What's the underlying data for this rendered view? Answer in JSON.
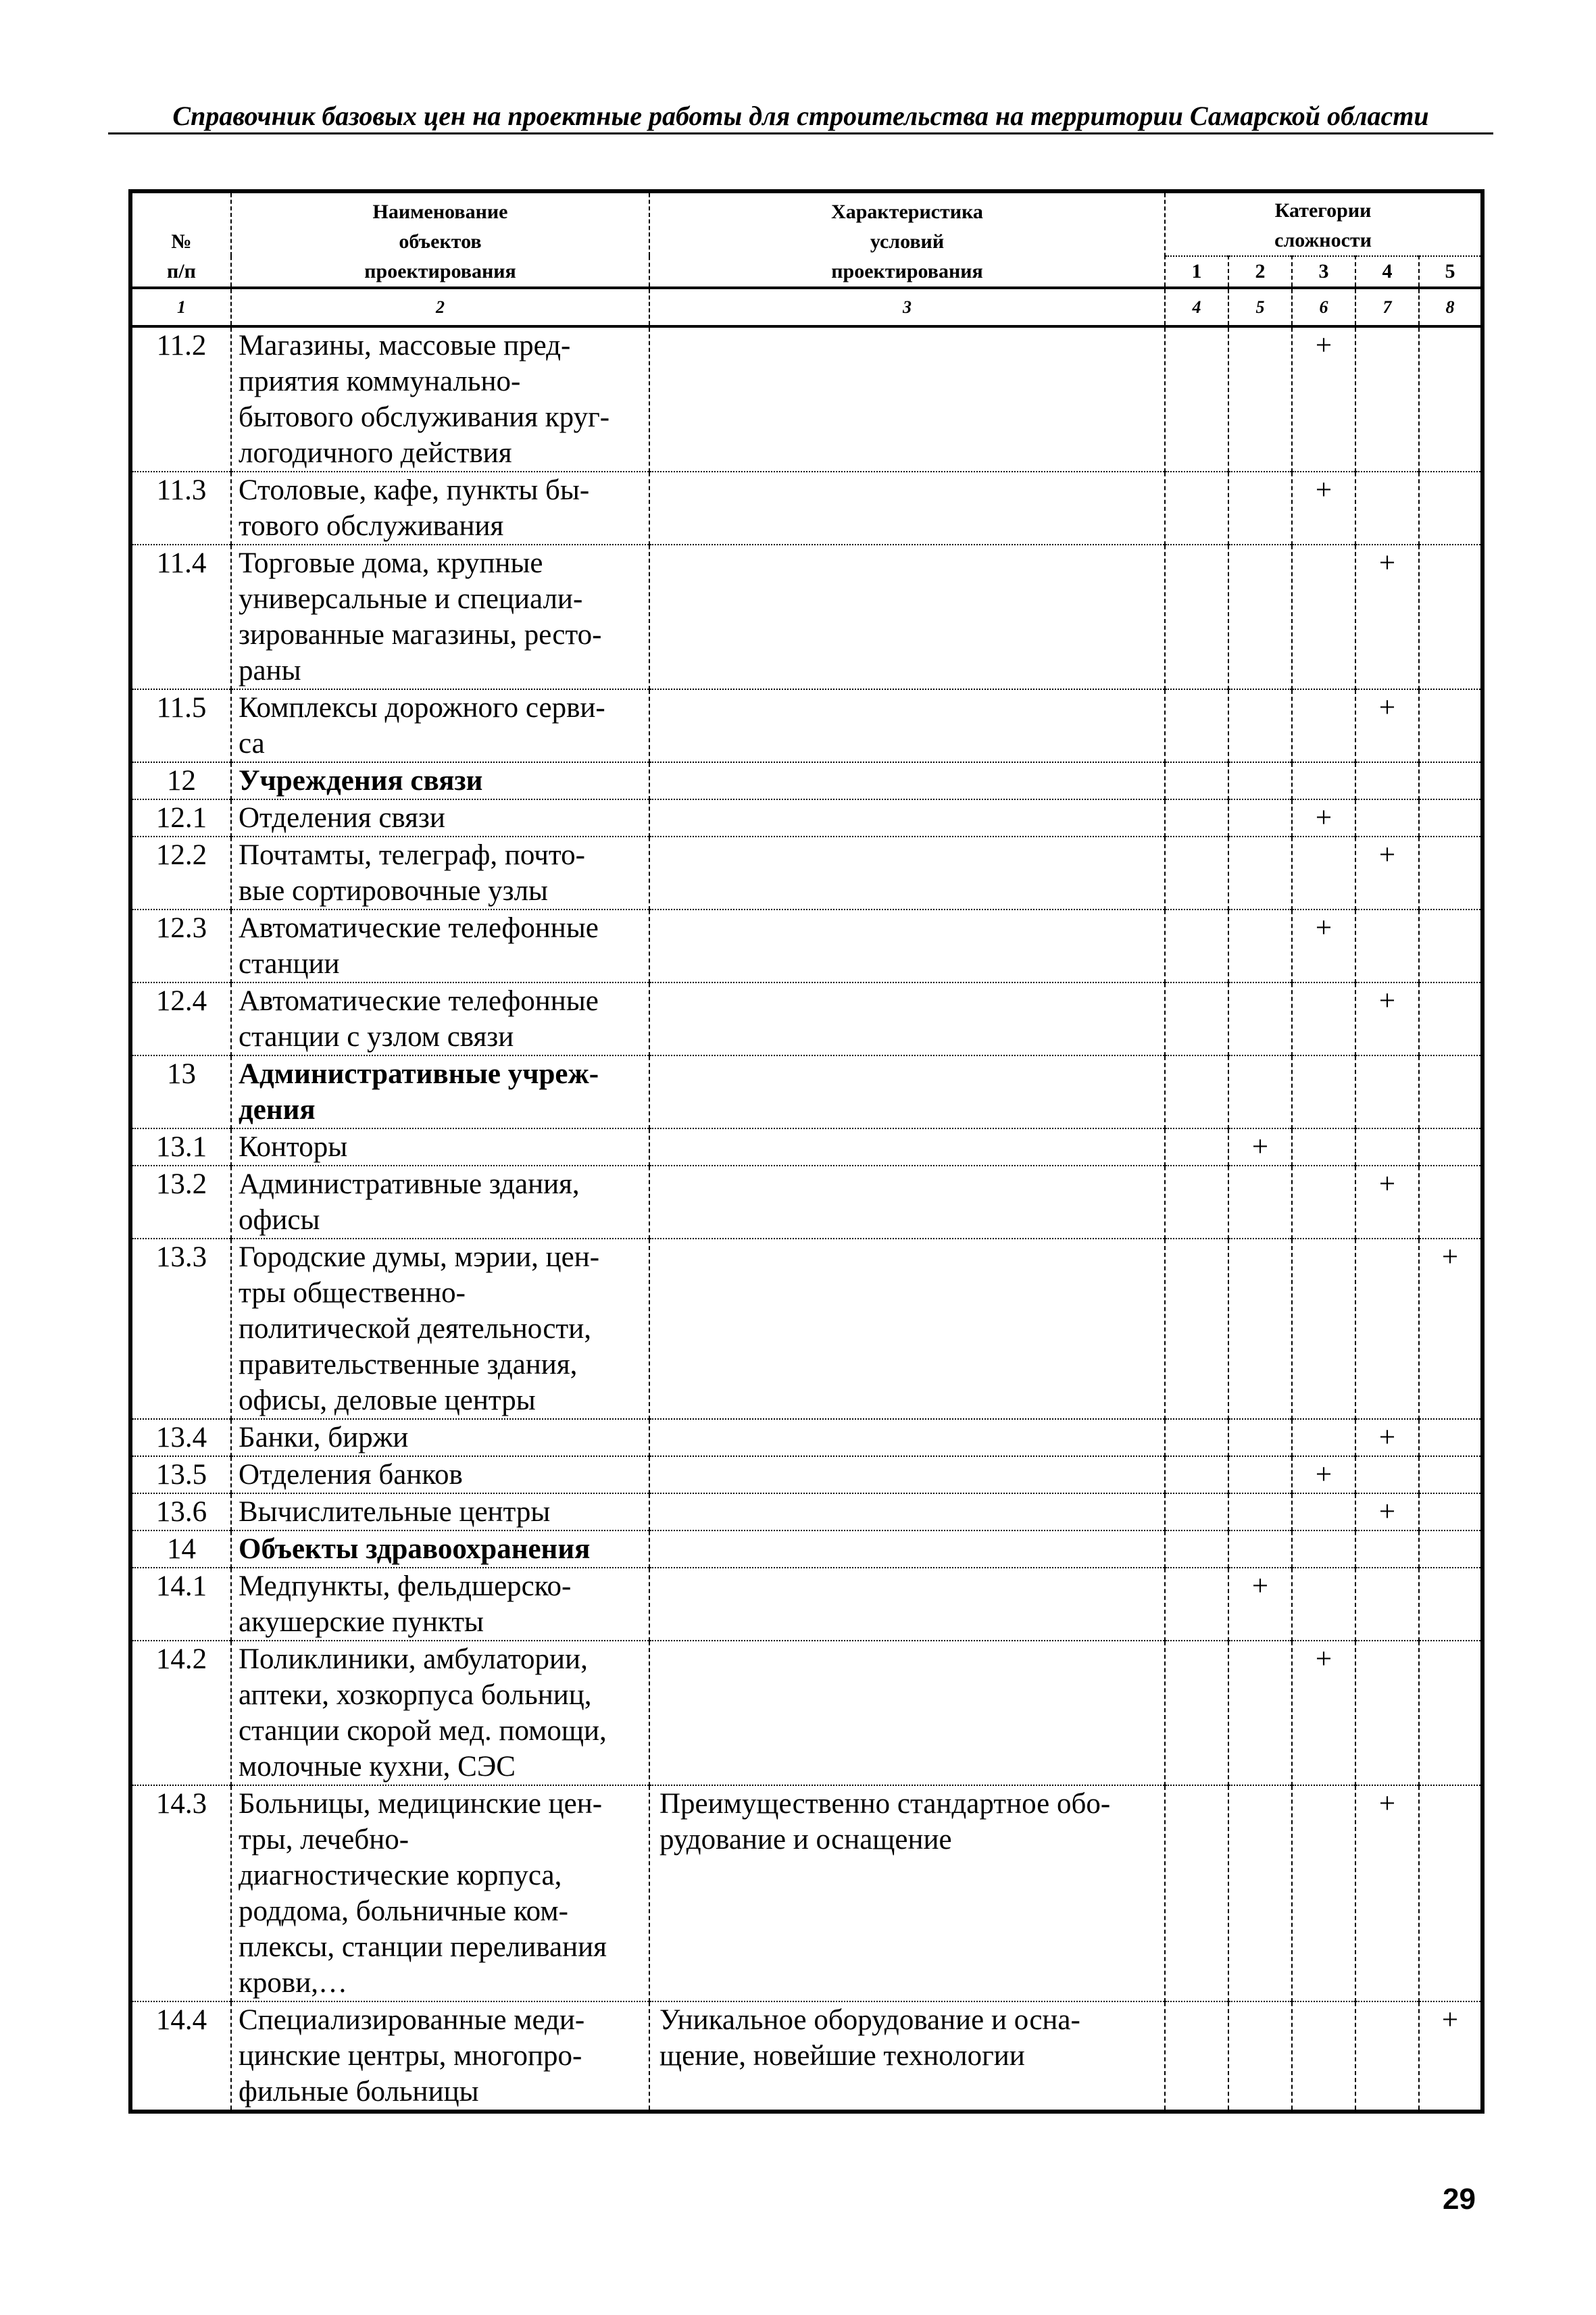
{
  "header": {
    "title": "Справочник базовых цен на проектные работы для строительства на территории Самарской области"
  },
  "table": {
    "headers": {
      "num": "№\nп/п",
      "name": "Наименование\nобъектов\nпроектирования",
      "cond": "Характеристика\nусловий\nпроектирования",
      "cat": "Категории\nсложности",
      "cats": [
        "1",
        "2",
        "3",
        "4",
        "5"
      ]
    },
    "col_numbers": [
      "1",
      "2",
      "3",
      "4",
      "5",
      "6",
      "7",
      "8"
    ],
    "rows": [
      {
        "num": "11.2",
        "name": "Магазины, массовые пред-\nприятия коммунально-\nбытового обслуживания круг-\nлогодичного действия",
        "cond": "",
        "category": 3
      },
      {
        "num": "11.3",
        "name": "Столовые, кафе, пункты бы-\nтового обслуживания",
        "cond": "",
        "category": 3
      },
      {
        "num": "11.4",
        "name": "Торговые дома, крупные\nуниверсальные и специали-\nзированные магазины, ресто-\nраны",
        "cond": "",
        "category": 4
      },
      {
        "num": "11.5",
        "name": "Комплексы дорожного серви-\nса",
        "cond": "",
        "category": 4
      },
      {
        "num": "12",
        "name": "Учреждения связи",
        "cond": "",
        "category": null,
        "section": true
      },
      {
        "num": "12.1",
        "name": "Отделения связи",
        "cond": "",
        "category": 3
      },
      {
        "num": "12.2",
        "name": "Почтамты, телеграф, почто-\nвые сортировочные узлы",
        "cond": "",
        "category": 4
      },
      {
        "num": "12.3",
        "name": "Автоматические телефонные\nстанции",
        "cond": "",
        "category": 3
      },
      {
        "num": "12.4",
        "name": "Автоматические телефонные\nстанции с узлом связи",
        "cond": "",
        "category": 4
      },
      {
        "num": "13",
        "name": "Административные учреж-\nдения",
        "cond": "",
        "category": null,
        "section": true
      },
      {
        "num": "13.1",
        "name": "Конторы",
        "cond": "",
        "category": 2
      },
      {
        "num": "13.2",
        "name": "Административные здания,\nофисы",
        "cond": "",
        "category": 4
      },
      {
        "num": "13.3",
        "name": "Городские думы, мэрии, цен-\nтры общественно-\nполитической деятельности,\nправительственные здания,\nофисы, деловые центры",
        "cond": "",
        "category": 5
      },
      {
        "num": "13.4",
        "name": "Банки, биржи",
        "cond": "",
        "category": 4
      },
      {
        "num": "13.5",
        "name": "Отделения банков",
        "cond": "",
        "category": 3
      },
      {
        "num": "13.6",
        "name": "Вычислительные центры",
        "cond": "",
        "category": 4
      },
      {
        "num": "14",
        "name": "Объекты здравоохранения",
        "cond": "",
        "category": null,
        "section": true
      },
      {
        "num": "14.1",
        "name": "Медпункты, фельдшерско-\nакушерские пункты",
        "cond": "",
        "category": 2
      },
      {
        "num": "14.2",
        "name": "Поликлиники, амбулатории,\nаптеки, хозкорпуса больниц,\nстанции скорой мед. помощи,\nмолочные кухни, СЭС",
        "cond": "",
        "category": 3
      },
      {
        "num": "14.3",
        "name": "Больницы, медицинские цен-\nтры, лечебно-\nдиагностические корпуса,\nроддома, больничные ком-\nплексы, станции переливания\nкрови,…",
        "cond": "Преимущественно стандартное обо-\nрудование и оснащение",
        "category": 4
      },
      {
        "num": "14.4",
        "name": "Специализированные меди-\nцинские центры, многопро-\nфильные больницы",
        "cond": "Уникальное оборудование и осна-\nщение, новейшие технологии",
        "category": 5
      }
    ],
    "mark": "+"
  },
  "page_number": "29"
}
